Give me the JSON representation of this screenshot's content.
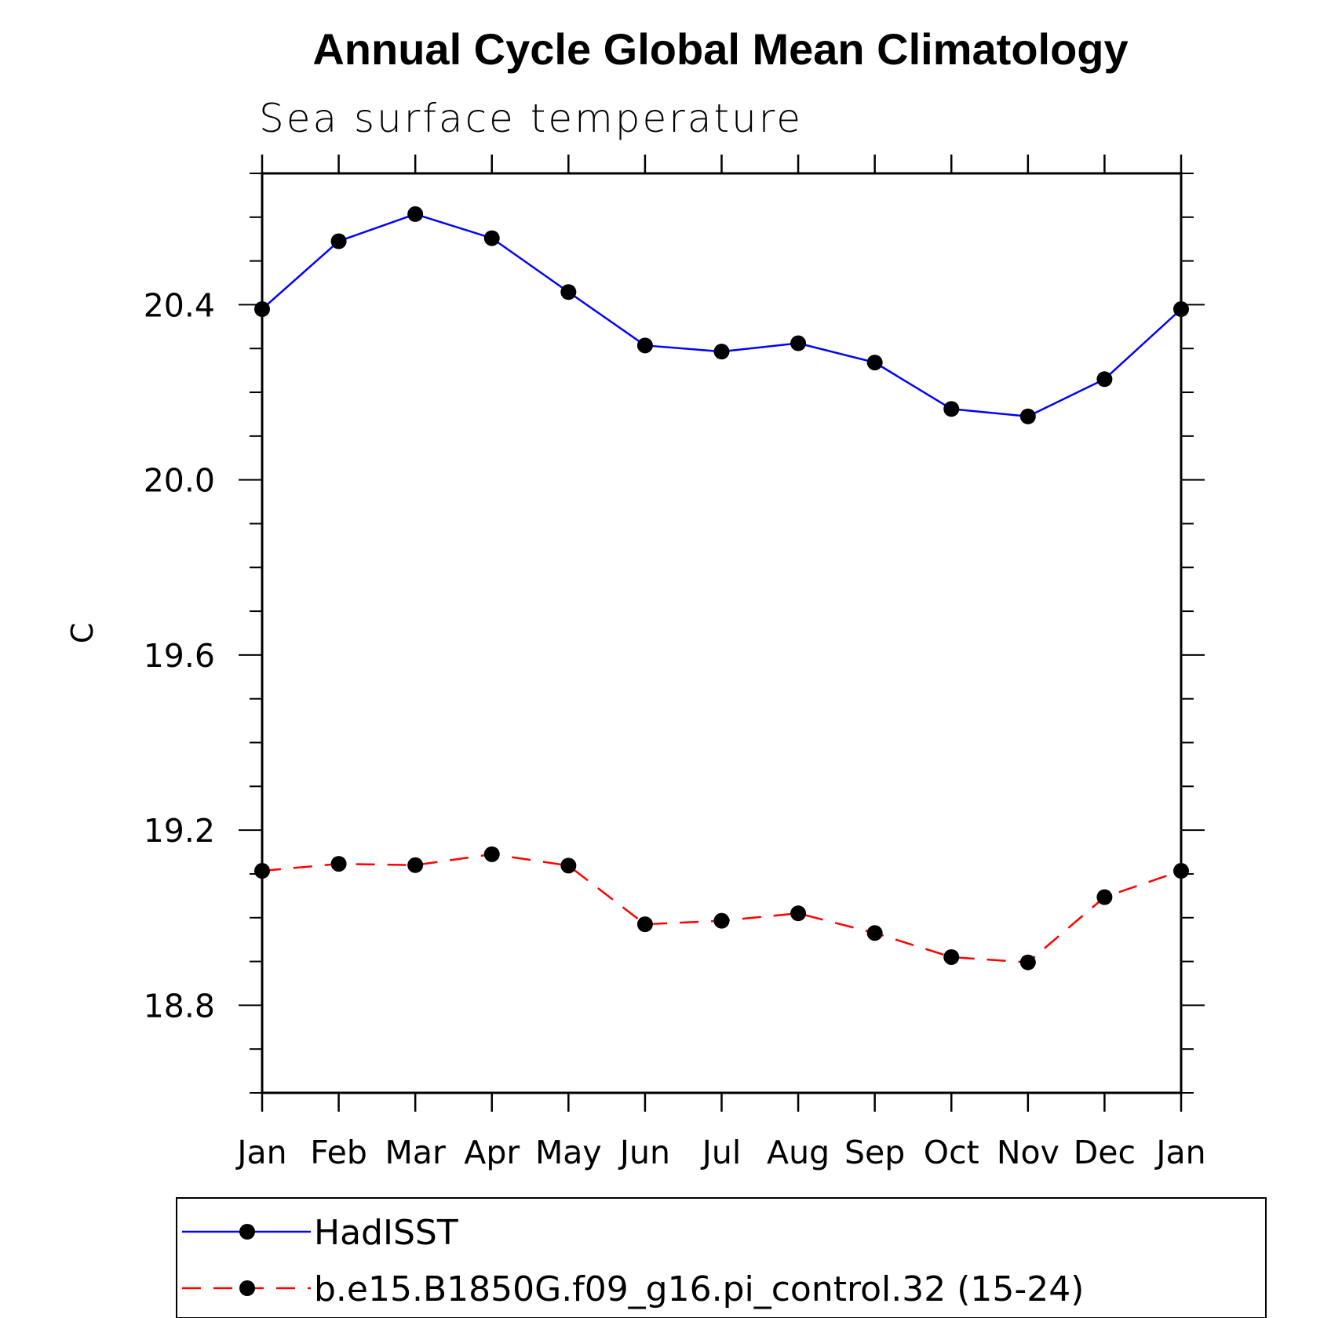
{
  "chart_data": {
    "type": "line",
    "title": "Annual Cycle Global Mean Climatology",
    "subtitle": "Sea surface temperature",
    "xlabel": "",
    "ylabel": "C",
    "categories": [
      "Jan",
      "Feb",
      "Mar",
      "Apr",
      "May",
      "Jun",
      "Jul",
      "Aug",
      "Sep",
      "Oct",
      "Nov",
      "Dec",
      "Jan"
    ],
    "ylim": [
      18.6,
      20.7
    ],
    "yticks": [
      "18.8",
      "19.2",
      "19.6",
      "20.0",
      "20.4"
    ],
    "grid": false,
    "legend_position": "bottom",
    "series": [
      {
        "name": "HadISST",
        "color": "#0000ff",
        "line_style": "solid",
        "marker": "filled-circle",
        "values": [
          20.39,
          20.545,
          20.607,
          20.552,
          20.429,
          20.307,
          20.293,
          20.312,
          20.268,
          20.162,
          20.145,
          20.23,
          20.39
        ]
      },
      {
        "name": "b.e15.B1850G.f09_g16.pi_control.32 (15-24)",
        "color": "#ff0000",
        "line_style": "dashed",
        "marker": "filled-circle",
        "values": [
          19.107,
          19.123,
          19.12,
          19.145,
          19.119,
          18.985,
          18.993,
          19.01,
          18.965,
          18.91,
          18.898,
          19.047,
          19.107
        ]
      }
    ]
  }
}
